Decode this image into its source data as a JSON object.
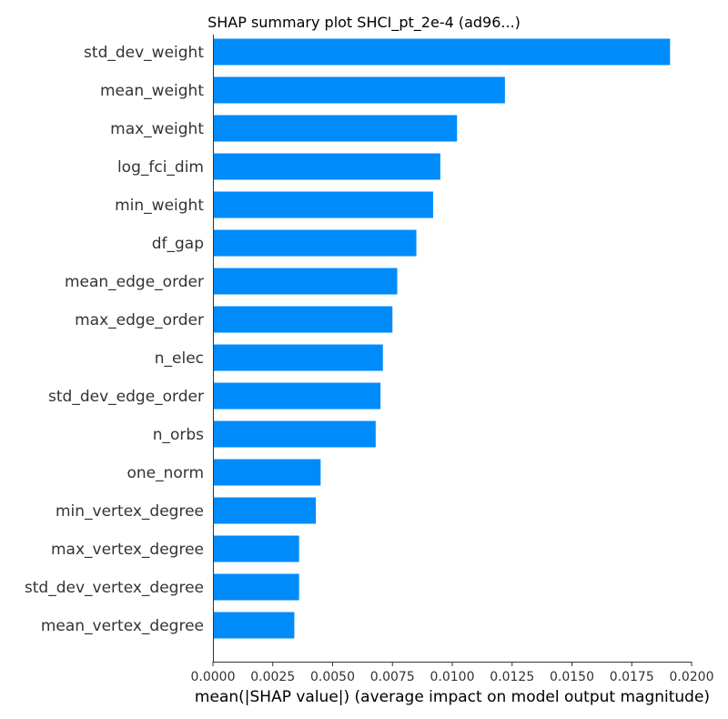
{
  "chart_data": {
    "type": "bar",
    "orientation": "horizontal",
    "title": "SHAP summary plot SHCI_pt_2e-4 (ad96...)",
    "xlabel": "mean(|SHAP value|) (average impact on model output magnitude)",
    "ylabel": "",
    "xlim": [
      0,
      0.02
    ],
    "x_ticks": [
      "0.0000",
      "0.0025",
      "0.0050",
      "0.0075",
      "0.0100",
      "0.0125",
      "0.0150",
      "0.0175",
      "0.0200"
    ],
    "bar_color": "#008bfb",
    "categories": [
      "std_dev_weight",
      "mean_weight",
      "max_weight",
      "log_fci_dim",
      "min_weight",
      "df_gap",
      "mean_edge_order",
      "max_edge_order",
      "n_elec",
      "std_dev_edge_order",
      "n_orbs",
      "one_norm",
      "min_vertex_degree",
      "max_vertex_degree",
      "std_dev_vertex_degree",
      "mean_vertex_degree"
    ],
    "values": [
      0.0191,
      0.0122,
      0.0102,
      0.0095,
      0.0092,
      0.0085,
      0.0077,
      0.0075,
      0.0071,
      0.007,
      0.0068,
      0.0045,
      0.0043,
      0.0036,
      0.0036,
      0.0034
    ]
  }
}
